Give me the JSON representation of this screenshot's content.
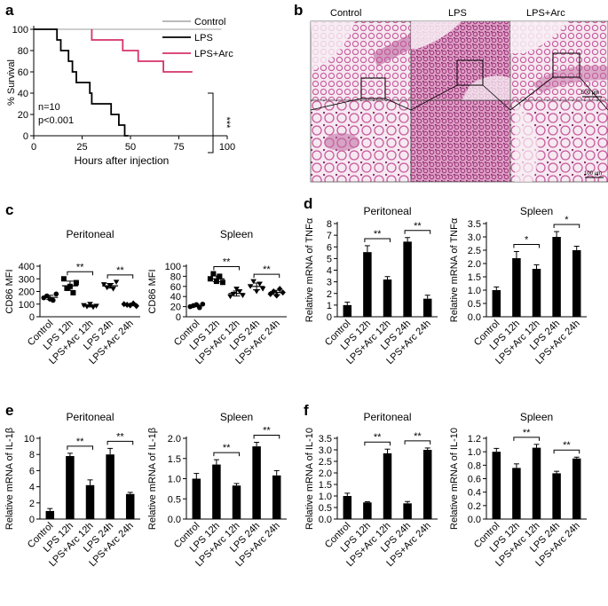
{
  "panel_labels": [
    "a",
    "b",
    "c",
    "d",
    "e",
    "f"
  ],
  "micro": {
    "titles": [
      "Control",
      "LPS",
      "LPS+Arc"
    ],
    "scale_bar_top": "500 μm",
    "scale_bar_bottom": "100 μm",
    "colors": {
      "tissue": "#e3a6c8",
      "stain": "#c85a9c",
      "background": "#f6e9f1",
      "border": "#555555"
    }
  },
  "colors": {
    "control": "#b0b0b0",
    "lps": "#000000",
    "lps_arc": "#d6336c",
    "bar": "#000000"
  },
  "chart_data": [
    {
      "type": "line",
      "panel": "a",
      "xlabel": "Hours after injection",
      "ylabel": "% Survival",
      "xlim": [
        0,
        100
      ],
      "ylim": [
        0,
        100
      ],
      "xticks": [
        0,
        25,
        50,
        75,
        100
      ],
      "yticks": [
        0,
        20,
        40,
        60,
        80,
        100
      ],
      "legend_position": "top-right",
      "series": [
        {
          "name": "Control",
          "color": "#b0b0b0",
          "points": [
            [
              0,
              100
            ],
            [
              97,
              100
            ]
          ]
        },
        {
          "name": "LPS",
          "color": "#000000",
          "points": [
            [
              0,
              100
            ],
            [
              12,
              100
            ],
            [
              12,
              90
            ],
            [
              14,
              90
            ],
            [
              14,
              80
            ],
            [
              18,
              80
            ],
            [
              18,
              70
            ],
            [
              20,
              70
            ],
            [
              20,
              60
            ],
            [
              22,
              60
            ],
            [
              22,
              50
            ],
            [
              29,
              50
            ],
            [
              29,
              40
            ],
            [
              30,
              40
            ],
            [
              30,
              30
            ],
            [
              40,
              30
            ],
            [
              40,
              20
            ],
            [
              44,
              20
            ],
            [
              44,
              10
            ],
            [
              47,
              10
            ],
            [
              47,
              0
            ],
            [
              49,
              0
            ]
          ]
        },
        {
          "name": "LPS+Arc",
          "color": "#d6336c",
          "points": [
            [
              30,
              100
            ],
            [
              30,
              90
            ],
            [
              46,
              90
            ],
            [
              46,
              80
            ],
            [
              54,
              80
            ],
            [
              54,
              70
            ],
            [
              67,
              70
            ],
            [
              67,
              60
            ],
            [
              82,
              60
            ]
          ]
        }
      ],
      "annotations": [
        "n=10",
        "p<0.001",
        "***"
      ]
    },
    {
      "type": "scatter",
      "panel": "c",
      "title": "Peritoneal",
      "ylabel": "CD86  MFI",
      "categories": [
        "Control",
        "LPS 12h",
        "LPS+Arc 12h",
        "LPS 24h",
        "LPS+Arc 24h"
      ],
      "ylim": [
        0,
        400
      ],
      "yticks": [
        0,
        100,
        200,
        300,
        400
      ],
      "points": [
        [
          150,
          165,
          140,
          130,
          180
        ],
        [
          300,
          225,
          240,
          190,
          270
        ],
        [
          90,
          80,
          100,
          75,
          85
        ],
        [
          255,
          230,
          245,
          220,
          275
        ],
        [
          100,
          95,
          90,
          105,
          85
        ]
      ],
      "means": [
        153,
        245,
        86,
        245,
        95
      ],
      "sig": [
        {
          "from": 1,
          "to": 2,
          "label": "**"
        },
        {
          "from": 3,
          "to": 4,
          "label": "**"
        }
      ]
    },
    {
      "type": "scatter",
      "panel": "c",
      "title": "Spleen",
      "ylabel": "CD86  MFI",
      "categories": [
        "Control",
        "LPS 12h",
        "LPS+Arc 12h",
        "LPS 24h",
        "LPS+Arc 24h"
      ],
      "ylim": [
        0,
        100
      ],
      "yticks": [
        0,
        20,
        40,
        60,
        80,
        100
      ],
      "points": [
        [
          20,
          22,
          24,
          18,
          25
        ],
        [
          75,
          85,
          70,
          80,
          68
        ],
        [
          40,
          45,
          55,
          50,
          42
        ],
        [
          60,
          70,
          50,
          65,
          55
        ],
        [
          45,
          50,
          42,
          55,
          48
        ]
      ],
      "means": [
        22,
        75,
        46,
        60,
        48
      ],
      "sig": [
        {
          "from": 1,
          "to": 2,
          "label": "**"
        },
        {
          "from": 3,
          "to": 4,
          "label": "**"
        }
      ]
    },
    {
      "type": "bar",
      "panel": "d",
      "title": "Peritoneal",
      "ylabel": "Relative mRNA of TNFα",
      "categories": [
        "Control",
        "LPS 12h",
        "LPS+Arc 12h",
        "LPS 24h",
        "LPS+Arc 24h"
      ],
      "values": [
        1.0,
        5.55,
        3.2,
        6.45,
        1.55
      ],
      "errors": [
        0.25,
        0.55,
        0.25,
        0.35,
        0.3
      ],
      "ylim": [
        0,
        8
      ],
      "yticks": [
        0,
        1,
        2,
        3,
        4,
        5,
        6,
        7,
        8
      ],
      "sig": [
        {
          "from": 1,
          "to": 2,
          "label": "**"
        },
        {
          "from": 3,
          "to": 4,
          "label": "**"
        }
      ]
    },
    {
      "type": "bar",
      "panel": "d",
      "title": "Spleen",
      "ylabel": "Relative mRNA of TNFα",
      "categories": [
        "Control",
        "LPS 12h",
        "LPS+Arc 12h",
        "LPS 24h",
        "LPS+Arc 24h"
      ],
      "values": [
        1.0,
        2.2,
        1.8,
        3.0,
        2.5
      ],
      "errors": [
        0.12,
        0.25,
        0.15,
        0.2,
        0.15
      ],
      "ylim": [
        0,
        3.5
      ],
      "yticks": [
        0,
        0.5,
        1.0,
        1.5,
        2.0,
        2.5,
        3.0,
        3.5
      ],
      "sig": [
        {
          "from": 1,
          "to": 2,
          "label": "*"
        },
        {
          "from": 3,
          "to": 4,
          "label": "*"
        }
      ]
    },
    {
      "type": "bar",
      "panel": "e",
      "title": "Peritoneal",
      "ylabel": "Relative mRNA of IL-1β",
      "categories": [
        "Control",
        "LPS 12h",
        "LPS+Arc 12h",
        "LPS 24h",
        "LPS+Arc 24h"
      ],
      "values": [
        1.0,
        7.8,
        4.2,
        8.0,
        3.1
      ],
      "errors": [
        0.3,
        0.35,
        0.65,
        0.75,
        0.2
      ],
      "ylim": [
        0,
        10
      ],
      "yticks": [
        0,
        2,
        4,
        6,
        8,
        10
      ],
      "sig": [
        {
          "from": 1,
          "to": 2,
          "label": "**"
        },
        {
          "from": 3,
          "to": 4,
          "label": "**"
        }
      ]
    },
    {
      "type": "bar",
      "panel": "e",
      "title": "Spleen",
      "ylabel": "Relative mRNA of IL-1β",
      "categories": [
        "Control",
        "LPS 12h",
        "LPS+Arc 12h",
        "LPS 24h",
        "LPS+Arc 24h"
      ],
      "values": [
        1.0,
        1.35,
        0.83,
        1.8,
        1.08
      ],
      "errors": [
        0.13,
        0.12,
        0.05,
        0.1,
        0.12
      ],
      "ylim": [
        0,
        2.0
      ],
      "yticks": [
        0,
        0.5,
        1.0,
        1.5,
        2.0
      ],
      "sig": [
        {
          "from": 1,
          "to": 2,
          "label": "**"
        },
        {
          "from": 3,
          "to": 4,
          "label": "**"
        }
      ]
    },
    {
      "type": "bar",
      "panel": "f",
      "title": "Peritoneal",
      "ylabel": "Relative mRNA of IL-10",
      "categories": [
        "Control",
        "LPS 12h",
        "LPS+Arc 12h",
        "LPS 24h",
        "LPS+Arc 24h"
      ],
      "values": [
        1.0,
        0.72,
        2.85,
        0.68,
        3.0
      ],
      "errors": [
        0.12,
        0.03,
        0.18,
        0.08,
        0.08
      ],
      "ylim": [
        0,
        3.5
      ],
      "yticks": [
        0,
        0.5,
        1.0,
        1.5,
        2.0,
        2.5,
        3.0,
        3.5
      ],
      "sig": [
        {
          "from": 1,
          "to": 2,
          "label": "**"
        },
        {
          "from": 3,
          "to": 4,
          "label": "**"
        }
      ]
    },
    {
      "type": "bar",
      "panel": "f",
      "title": "Spleen",
      "ylabel": "Relative mRNA of IL-10",
      "categories": [
        "Control",
        "LPS 12h",
        "LPS+Arc 12h",
        "LPS 24h",
        "LPS+Arc 24h"
      ],
      "values": [
        1.0,
        0.76,
        1.06,
        0.68,
        0.9
      ],
      "errors": [
        0.05,
        0.06,
        0.05,
        0.03,
        0.02
      ],
      "ylim": [
        0,
        1.2
      ],
      "yticks": [
        0,
        0.2,
        0.4,
        0.6,
        0.8,
        1.0,
        1.2
      ],
      "sig": [
        {
          "from": 1,
          "to": 2,
          "label": "**"
        },
        {
          "from": 3,
          "to": 4,
          "label": "**"
        }
      ]
    }
  ]
}
